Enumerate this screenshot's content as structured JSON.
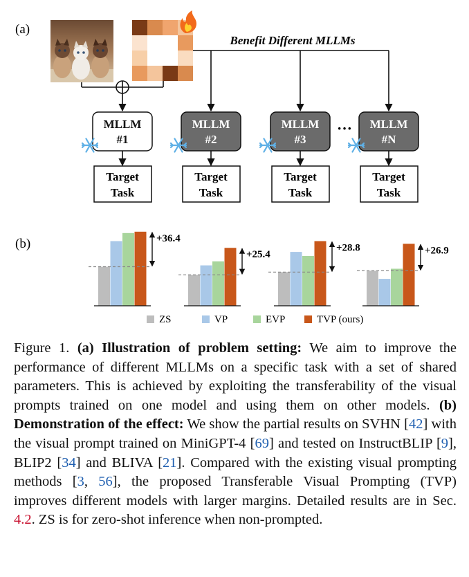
{
  "panel_a": {
    "label": "(a)",
    "benefit_text": "Benefit Different MLLMs",
    "fire_icon": "fire-icon",
    "snowflake_icon": "snowflake-icon",
    "ellipsis": "···",
    "models": [
      {
        "line1": "MLLM",
        "line2": "#1",
        "frozen": true,
        "dark": false
      },
      {
        "line1": "MLLM",
        "line2": "#2",
        "frozen": true,
        "dark": true
      },
      {
        "line1": "MLLM",
        "line2": "#3",
        "frozen": true,
        "dark": true
      },
      {
        "line1": "MLLM",
        "line2": "#N",
        "frozen": true,
        "dark": true
      }
    ],
    "task_line1": "Target",
    "task_line2": "Task",
    "colors": {
      "dark_box": "#6b6b6b",
      "prompt_dark": "#7a3a16",
      "prompt_mid": "#d98a4e",
      "prompt_light": "#f4c59c"
    }
  },
  "panel_b": {
    "label": "(b)",
    "chart_data": [
      {
        "type": "bar",
        "categories": [
          "ZS",
          "VP",
          "EVP",
          "TVP (ours)"
        ],
        "values": [
          58,
          96,
          108,
          110
        ],
        "annotation": "+36.4",
        "ylim": [
          0,
          115
        ]
      },
      {
        "type": "bar",
        "categories": [
          "ZS",
          "VP",
          "EVP",
          "TVP (ours)"
        ],
        "values": [
          46,
          60,
          66,
          86
        ],
        "annotation": "+25.4",
        "ylim": [
          0,
          115
        ]
      },
      {
        "type": "bar",
        "categories": [
          "ZS",
          "VP",
          "EVP",
          "TVP (ours)"
        ],
        "values": [
          50,
          80,
          74,
          96
        ],
        "annotation": "+28.8",
        "ylim": [
          0,
          115
        ]
      },
      {
        "type": "bar",
        "categories": [
          "ZS",
          "VP",
          "EVP",
          "TVP (ours)"
        ],
        "values": [
          52,
          40,
          55,
          92
        ],
        "annotation": "+26.9",
        "ylim": [
          0,
          115
        ]
      }
    ],
    "legend": [
      {
        "label": "ZS",
        "color": "#bdbdbd"
      },
      {
        "label": "VP",
        "color": "#a9c8e8"
      },
      {
        "label": "EVP",
        "color": "#a8d59c"
      },
      {
        "label": "TVP (ours)",
        "color": "#c8571a"
      }
    ]
  },
  "caption": {
    "fig": "Figure 1.",
    "a_head": "(a) Illustration of problem setting:",
    "a_text": "We aim to improve the performance of different MLLMs on a specific task with a set of shared parameters. This is achieved by exploiting the transferability of the visual prompts trained on one model and using them on other models.",
    "b_head": "(b) Demonstration of the effect:",
    "b_text1": "We show the partial results on SVHN [",
    "r42": "42",
    "b_text2": "] with the visual prompt trained on MiniGPT-4 [",
    "r69": "69",
    "b_text3": "] and tested on InstructBLIP [",
    "r9": "9",
    "b_text4": "], BLIP2 [",
    "r34": "34",
    "b_text5": "] and BLIVA [",
    "r21": "21",
    "b_text6": "]. Compared with the existing visual prompting methods [",
    "r3": "3",
    "sep": ", ",
    "r56": "56",
    "b_text7": "], the proposed Transferable Visual Prompting (TVP) improves different models with larger margins. Detailed results are in Sec. ",
    "sec": "4.2",
    "b_text8": ". ZS is for zero-shot inference when non-prompted."
  }
}
